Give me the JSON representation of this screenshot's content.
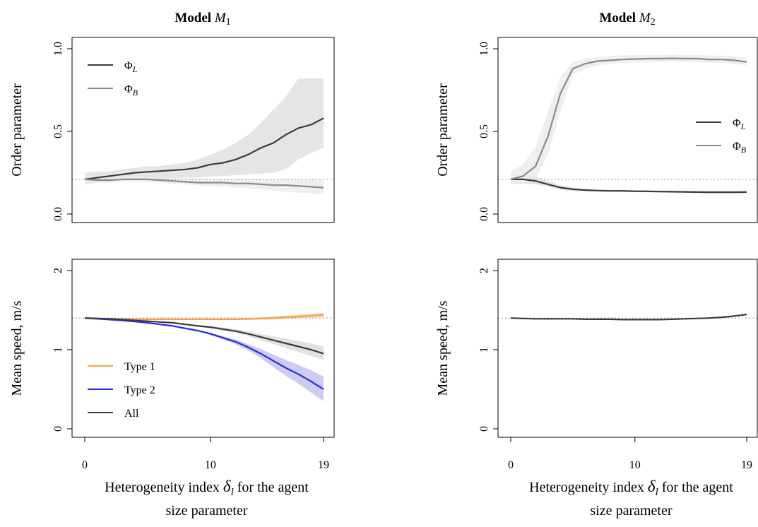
{
  "chart_data": [
    {
      "type": "line",
      "panel": "M1-order",
      "title_main": "Model ",
      "title_model": "M",
      "title_sub": "1",
      "ylabel": "Order parameter",
      "x_ticks": [],
      "y_ticks": [
        "0.0",
        "0.5",
        "1.0"
      ],
      "y_tick_values": [
        0,
        0.5,
        1.0
      ],
      "xlim": [
        0,
        19
      ],
      "ylim": [
        0,
        1
      ],
      "reference_line": 0.21,
      "legend_position": "top-left",
      "series": [
        {
          "name": "Φ",
          "sub": "L",
          "color": "#3b3b3b",
          "band": "#e0e0e0",
          "x": [
            0,
            1,
            2,
            3,
            4,
            5,
            6,
            7,
            8,
            9,
            10,
            11,
            12,
            13,
            14,
            15,
            16,
            17,
            18,
            19
          ],
          "values": [
            0.21,
            0.22,
            0.23,
            0.24,
            0.25,
            0.255,
            0.26,
            0.265,
            0.27,
            0.28,
            0.3,
            0.31,
            0.33,
            0.36,
            0.4,
            0.43,
            0.48,
            0.52,
            0.54,
            0.58
          ],
          "lower": [
            0.18,
            0.19,
            0.2,
            0.205,
            0.21,
            0.21,
            0.215,
            0.215,
            0.22,
            0.22,
            0.225,
            0.23,
            0.235,
            0.24,
            0.245,
            0.25,
            0.27,
            0.33,
            0.37,
            0.4
          ],
          "upper": [
            0.25,
            0.255,
            0.26,
            0.27,
            0.28,
            0.29,
            0.29,
            0.3,
            0.31,
            0.33,
            0.36,
            0.39,
            0.43,
            0.48,
            0.55,
            0.63,
            0.71,
            0.82,
            0.82,
            0.82
          ]
        },
        {
          "name": "Φ",
          "sub": "B",
          "color": "#8a8a8a",
          "band": "#ececec",
          "x": [
            0,
            1,
            2,
            3,
            4,
            5,
            6,
            7,
            8,
            9,
            10,
            11,
            12,
            13,
            14,
            15,
            16,
            17,
            18,
            19
          ],
          "values": [
            0.21,
            0.205,
            0.205,
            0.21,
            0.21,
            0.21,
            0.205,
            0.2,
            0.195,
            0.19,
            0.19,
            0.19,
            0.185,
            0.185,
            0.18,
            0.175,
            0.175,
            0.17,
            0.165,
            0.16
          ],
          "lower": [
            0.19,
            0.19,
            0.19,
            0.195,
            0.195,
            0.195,
            0.19,
            0.185,
            0.18,
            0.175,
            0.17,
            0.165,
            0.16,
            0.155,
            0.15,
            0.14,
            0.135,
            0.13,
            0.125,
            0.12
          ],
          "upper": [
            0.23,
            0.225,
            0.225,
            0.225,
            0.225,
            0.225,
            0.22,
            0.22,
            0.215,
            0.21,
            0.21,
            0.21,
            0.21,
            0.21,
            0.21,
            0.21,
            0.21,
            0.21,
            0.21,
            0.205
          ]
        }
      ]
    },
    {
      "type": "line",
      "panel": "M2-order",
      "title_main": "Model ",
      "title_model": "M",
      "title_sub": "2",
      "ylabel": "Order parameter",
      "x_ticks": [],
      "y_ticks": [
        "0.0",
        "0.5",
        "1.0"
      ],
      "y_tick_values": [
        0,
        0.5,
        1.0
      ],
      "xlim": [
        0,
        19
      ],
      "ylim": [
        0,
        1
      ],
      "reference_line": 0.21,
      "legend_position": "right",
      "series": [
        {
          "name": "Φ",
          "sub": "L",
          "color": "#3b3b3b",
          "band": "#e0e0e0",
          "x": [
            0,
            1,
            2,
            3,
            4,
            5,
            6,
            7,
            8,
            9,
            10,
            11,
            12,
            13,
            14,
            15,
            16,
            17,
            18,
            19
          ],
          "values": [
            0.21,
            0.21,
            0.2,
            0.18,
            0.16,
            0.15,
            0.145,
            0.142,
            0.14,
            0.14,
            0.138,
            0.137,
            0.136,
            0.135,
            0.134,
            0.133,
            0.132,
            0.132,
            0.132,
            0.133
          ],
          "lower": [
            0.18,
            0.185,
            0.18,
            0.165,
            0.15,
            0.14,
            0.138,
            0.136,
            0.134,
            0.133,
            0.132,
            0.131,
            0.13,
            0.129,
            0.128,
            0.127,
            0.126,
            0.126,
            0.126,
            0.127
          ],
          "upper": [
            0.24,
            0.24,
            0.225,
            0.2,
            0.175,
            0.16,
            0.152,
            0.148,
            0.146,
            0.146,
            0.144,
            0.143,
            0.142,
            0.141,
            0.14,
            0.139,
            0.138,
            0.138,
            0.138,
            0.139
          ]
        },
        {
          "name": "Φ",
          "sub": "B",
          "color": "#8a8a8a",
          "band": "#ececec",
          "x": [
            0,
            1,
            2,
            3,
            4,
            5,
            6,
            7,
            8,
            9,
            10,
            11,
            12,
            13,
            14,
            15,
            16,
            17,
            18,
            19
          ],
          "values": [
            0.21,
            0.23,
            0.29,
            0.47,
            0.73,
            0.88,
            0.91,
            0.925,
            0.93,
            0.935,
            0.938,
            0.94,
            0.94,
            0.942,
            0.94,
            0.94,
            0.935,
            0.935,
            0.93,
            0.92
          ],
          "lower": [
            0.18,
            0.19,
            0.22,
            0.36,
            0.62,
            0.84,
            0.88,
            0.9,
            0.91,
            0.915,
            0.918,
            0.92,
            0.92,
            0.922,
            0.92,
            0.92,
            0.915,
            0.915,
            0.91,
            0.9
          ],
          "upper": [
            0.26,
            0.3,
            0.41,
            0.62,
            0.83,
            0.92,
            0.94,
            0.95,
            0.955,
            0.96,
            0.962,
            0.963,
            0.963,
            0.965,
            0.963,
            0.963,
            0.958,
            0.958,
            0.955,
            0.945
          ]
        }
      ]
    },
    {
      "type": "line",
      "panel": "M1-speed",
      "ylabel": "Mean speed, m/s",
      "xlabel_line1": "Heterogeneity index ",
      "xlabel_delta": "δ",
      "xlabel_sub": "l",
      "xlabel_rest": " for the agent",
      "xlabel_line2": "size parameter",
      "x_ticks": [
        "0",
        "10",
        "19"
      ],
      "x_tick_values": [
        0,
        10,
        19
      ],
      "y_ticks": [
        "0",
        "1",
        "2"
      ],
      "y_tick_values": [
        0,
        1,
        2
      ],
      "xlim": [
        0,
        19
      ],
      "ylim": [
        0,
        2
      ],
      "reference_line": 1.4,
      "legend_position": "bottom-left",
      "series": [
        {
          "name": "Type 1",
          "color": "#f5a04a",
          "band": "#f9d3a8",
          "x": [
            0,
            1,
            2,
            3,
            4,
            5,
            6,
            7,
            8,
            9,
            10,
            11,
            12,
            13,
            14,
            15,
            16,
            17,
            18,
            19
          ],
          "values": [
            1.4,
            1.395,
            1.39,
            1.385,
            1.385,
            1.385,
            1.385,
            1.385,
            1.385,
            1.385,
            1.385,
            1.385,
            1.385,
            1.39,
            1.395,
            1.4,
            1.41,
            1.42,
            1.43,
            1.44
          ],
          "lower": [
            1.39,
            1.385,
            1.38,
            1.375,
            1.375,
            1.375,
            1.375,
            1.375,
            1.375,
            1.375,
            1.375,
            1.375,
            1.375,
            1.375,
            1.38,
            1.38,
            1.39,
            1.395,
            1.4,
            1.41
          ],
          "upper": [
            1.41,
            1.405,
            1.4,
            1.395,
            1.395,
            1.395,
            1.395,
            1.395,
            1.395,
            1.395,
            1.395,
            1.395,
            1.395,
            1.4,
            1.41,
            1.42,
            1.43,
            1.445,
            1.455,
            1.465
          ]
        },
        {
          "name": "Type 2",
          "color": "#2828e6",
          "band": "#c3c3f3",
          "x": [
            0,
            1,
            2,
            3,
            4,
            5,
            6,
            7,
            8,
            9,
            10,
            11,
            12,
            13,
            14,
            15,
            16,
            17,
            18,
            19
          ],
          "values": [
            1.4,
            1.39,
            1.38,
            1.37,
            1.355,
            1.34,
            1.32,
            1.3,
            1.27,
            1.24,
            1.2,
            1.15,
            1.1,
            1.03,
            0.95,
            0.86,
            0.77,
            0.69,
            0.6,
            0.5
          ],
          "lower": [
            1.39,
            1.38,
            1.37,
            1.36,
            1.345,
            1.33,
            1.31,
            1.29,
            1.26,
            1.23,
            1.185,
            1.13,
            1.07,
            0.99,
            0.89,
            0.78,
            0.67,
            0.57,
            0.46,
            0.35
          ],
          "upper": [
            1.41,
            1.4,
            1.39,
            1.38,
            1.365,
            1.35,
            1.33,
            1.31,
            1.28,
            1.25,
            1.215,
            1.17,
            1.13,
            1.07,
            1.01,
            0.94,
            0.87,
            0.81,
            0.74,
            0.66
          ]
        },
        {
          "name": "All",
          "color": "#3b3b3b",
          "band": "#dcdcdc",
          "x": [
            0,
            1,
            2,
            3,
            4,
            5,
            6,
            7,
            8,
            9,
            10,
            11,
            12,
            13,
            14,
            15,
            16,
            17,
            18,
            19
          ],
          "values": [
            1.4,
            1.395,
            1.39,
            1.38,
            1.37,
            1.36,
            1.35,
            1.34,
            1.32,
            1.3,
            1.285,
            1.26,
            1.235,
            1.2,
            1.16,
            1.12,
            1.08,
            1.04,
            1.0,
            0.95
          ],
          "lower": [
            1.395,
            1.39,
            1.385,
            1.375,
            1.365,
            1.355,
            1.345,
            1.335,
            1.315,
            1.29,
            1.27,
            1.24,
            1.21,
            1.17,
            1.12,
            1.07,
            1.02,
            0.97,
            0.92,
            0.87
          ],
          "upper": [
            1.405,
            1.4,
            1.395,
            1.385,
            1.375,
            1.365,
            1.355,
            1.345,
            1.325,
            1.31,
            1.3,
            1.28,
            1.26,
            1.23,
            1.2,
            1.17,
            1.14,
            1.11,
            1.08,
            1.04
          ]
        }
      ]
    },
    {
      "type": "line",
      "panel": "M2-speed",
      "ylabel": "Mean speed, m/s",
      "xlabel_line1": "Heterogeneity index ",
      "xlabel_delta": "δ",
      "xlabel_sub": "l",
      "xlabel_rest": " for the agent",
      "xlabel_line2": "size parameter",
      "x_ticks": [
        "0",
        "10",
        "19"
      ],
      "x_tick_values": [
        0,
        10,
        19
      ],
      "y_ticks": [
        "0",
        "1",
        "2"
      ],
      "y_tick_values": [
        0,
        1,
        2
      ],
      "xlim": [
        0,
        19
      ],
      "ylim": [
        0,
        2
      ],
      "reference_line": 1.4,
      "legend_position": "none",
      "series": [
        {
          "color": "#3b3b3b",
          "band": "#dcdcdc",
          "x": [
            0,
            1,
            2,
            3,
            4,
            5,
            6,
            7,
            8,
            9,
            10,
            11,
            12,
            13,
            14,
            15,
            16,
            17,
            18,
            19
          ],
          "values": [
            1.4,
            1.395,
            1.39,
            1.39,
            1.39,
            1.39,
            1.385,
            1.385,
            1.385,
            1.38,
            1.38,
            1.38,
            1.38,
            1.385,
            1.39,
            1.395,
            1.4,
            1.41,
            1.425,
            1.445
          ],
          "lower": [
            1.395,
            1.39,
            1.385,
            1.385,
            1.385,
            1.385,
            1.38,
            1.38,
            1.38,
            1.375,
            1.375,
            1.375,
            1.375,
            1.38,
            1.385,
            1.39,
            1.395,
            1.405,
            1.42,
            1.435
          ],
          "upper": [
            1.405,
            1.4,
            1.395,
            1.395,
            1.395,
            1.395,
            1.39,
            1.39,
            1.39,
            1.385,
            1.385,
            1.385,
            1.385,
            1.39,
            1.395,
            1.4,
            1.405,
            1.415,
            1.43,
            1.455
          ]
        }
      ]
    }
  ]
}
